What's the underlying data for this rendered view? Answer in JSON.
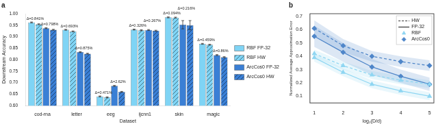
{
  "chart_data": [
    {
      "type": "bar",
      "title": "a",
      "x_label": "Dataset",
      "y_label": "Downstream Accuracy",
      "categories": [
        "cod-rna",
        "letter",
        "eeg",
        "ijcnn1",
        "skin",
        "magic"
      ],
      "series": [
        {
          "name": "RBF FP-32",
          "color": "#7fd4f5",
          "values": [
            0.962,
            0.93,
            0.64,
            0.931,
            0.984,
            0.869
          ],
          "errors": [
            0.002,
            0.002,
            0.002,
            0.002,
            0.002,
            0.002
          ]
        },
        {
          "name": "RBF HW",
          "color": "#7fd4f5",
          "line_style": "hatched",
          "values": [
            0.954,
            0.923,
            0.636,
            0.928,
            0.983,
            0.865
          ],
          "errors": [
            0.002,
            0.002,
            0.002,
            0.002,
            0.002,
            0.002
          ]
        },
        {
          "name": "ArcCos0 FP-32",
          "color": "#3a7fd5",
          "values": [
            0.937,
            0.833,
            0.686,
            0.929,
            0.952,
            0.82
          ],
          "errors": [
            0.002,
            0.002,
            0.002,
            0.002,
            0.018,
            0.002
          ]
        },
        {
          "name": "ArcCos0 HW",
          "color": "#3a7fd5",
          "line_style": "hatched",
          "values": [
            0.93,
            0.826,
            0.66,
            0.926,
            0.95,
            0.811
          ],
          "errors": [
            0.002,
            0.002,
            0.002,
            0.002,
            0.02,
            0.002
          ]
        }
      ],
      "annotations": [
        {
          "category": "cod-rna",
          "series_names": [
            "RBF FP-32",
            "RBF HW"
          ],
          "text": "Δ=0.841%"
        },
        {
          "category": "cod-rna",
          "series_names": [
            "ArcCos0 FP-32",
            "ArcCos0 HW"
          ],
          "text": "Δ=0.798%"
        },
        {
          "category": "letter",
          "series_names": [
            "RBF FP-32",
            "RBF HW"
          ],
          "text": "Δ=0.693%"
        },
        {
          "category": "letter",
          "series_names": [
            "ArcCos0 FP-32",
            "ArcCos0 HW"
          ],
          "text": "Δ=0.875%"
        },
        {
          "category": "eeg",
          "series_names": [
            "RBF FP-32",
            "RBF HW"
          ],
          "text": "Δ=0.471%"
        },
        {
          "category": "eeg",
          "series_names": [
            "ArcCos0 FP-32",
            "ArcCos0 HW"
          ],
          "text": "Δ=2.62%"
        },
        {
          "category": "ijcnn1",
          "series_names": [
            "RBF FP-32",
            "RBF HW"
          ],
          "text": "Δ=0.326%"
        },
        {
          "category": "ijcnn1",
          "series_names": [
            "ArcCos0 FP-32",
            "ArcCos0 HW"
          ],
          "text": "Δ=0.267%"
        },
        {
          "category": "skin",
          "series_names": [
            "RBF FP-32",
            "RBF HW"
          ],
          "text": "Δ=0.094%"
        },
        {
          "category": "skin",
          "series_names": [
            "ArcCos0 FP-32",
            "ArcCos0 HW"
          ],
          "text": "Δ=0.216%"
        },
        {
          "category": "magic",
          "series_names": [
            "RBF FP-32",
            "RBF HW"
          ],
          "text": "Δ=0.459%"
        },
        {
          "category": "magic",
          "series_names": [
            "ArcCos0 FP-32",
            "ArcCos0 HW"
          ],
          "text": "Δ=0.86%"
        }
      ],
      "ylim": [
        0.6,
        1.0
      ],
      "yticks": [
        {
          "value": 0.6,
          "label": "0.60"
        },
        {
          "value": 0.65,
          "label": "0.65"
        },
        {
          "value": 0.7,
          "label": "0.70"
        },
        {
          "value": 0.75,
          "label": "0.75"
        },
        {
          "value": 0.8,
          "label": "0.80"
        },
        {
          "value": 0.85,
          "label": "0.85"
        },
        {
          "value": 0.9,
          "label": "0.90"
        },
        {
          "value": 0.95,
          "label": "0.95"
        },
        {
          "value": 1.0,
          "label": "1.00"
        }
      ],
      "grid": false,
      "legend": "right"
    },
    {
      "type": "line",
      "title": "b",
      "x_label": "log₂(D/d)",
      "y_label": "Normalized Average Approximation Error",
      "x": [
        1,
        2,
        3,
        4,
        5
      ],
      "series": [
        {
          "kernel": "RBF",
          "precision": "HW",
          "color": "#8fd6f2",
          "marker": "triangle",
          "line_style": "dashed",
          "values": [
            0.42,
            0.33,
            0.26,
            0.22,
            0.19
          ],
          "errors": [
            0.03,
            0.03,
            0.03,
            0.03,
            0.03
          ]
        },
        {
          "kernel": "RBF",
          "precision": "FP-32",
          "color": "#8fd6f2",
          "marker": "triangle",
          "line_style": "solid",
          "values": [
            0.39,
            0.28,
            0.19,
            0.14,
            0.1
          ],
          "errors": [
            0.03,
            0.03,
            0.03,
            0.03,
            0.03
          ]
        },
        {
          "kernel": "ArcCos0",
          "precision": "HW",
          "color": "#4f86c9",
          "marker": "diamond",
          "line_style": "dashed",
          "values": [
            0.61,
            0.48,
            0.4,
            0.36,
            0.33
          ],
          "errors": [
            0.06,
            0.05,
            0.04,
            0.04,
            0.04
          ]
        },
        {
          "kernel": "ArcCos0",
          "precision": "FP-32",
          "color": "#4f86c9",
          "marker": "diamond",
          "line_style": "solid",
          "values": [
            0.55,
            0.43,
            0.32,
            0.25,
            0.19
          ],
          "errors": [
            0.08,
            0.07,
            0.06,
            0.05,
            0.05
          ]
        }
      ],
      "legend_entries": [
        {
          "name": "HW",
          "line_style": "dashed"
        },
        {
          "name": "FP-32",
          "line_style": "solid"
        },
        {
          "name": "RBF",
          "marker": "triangle",
          "color": "#8fd6f2"
        },
        {
          "name": "ArcCos0",
          "marker": "diamond",
          "color": "#4f86c9"
        }
      ],
      "xlim": [
        0.85,
        5.15
      ],
      "xticks": [
        1,
        2,
        3,
        4,
        5
      ],
      "ylim": [
        0.05,
        0.72
      ],
      "yticks": [
        0.1,
        0.2,
        0.3,
        0.4,
        0.5,
        0.6,
        0.7
      ],
      "grid": false,
      "legend": "upper right"
    }
  ]
}
